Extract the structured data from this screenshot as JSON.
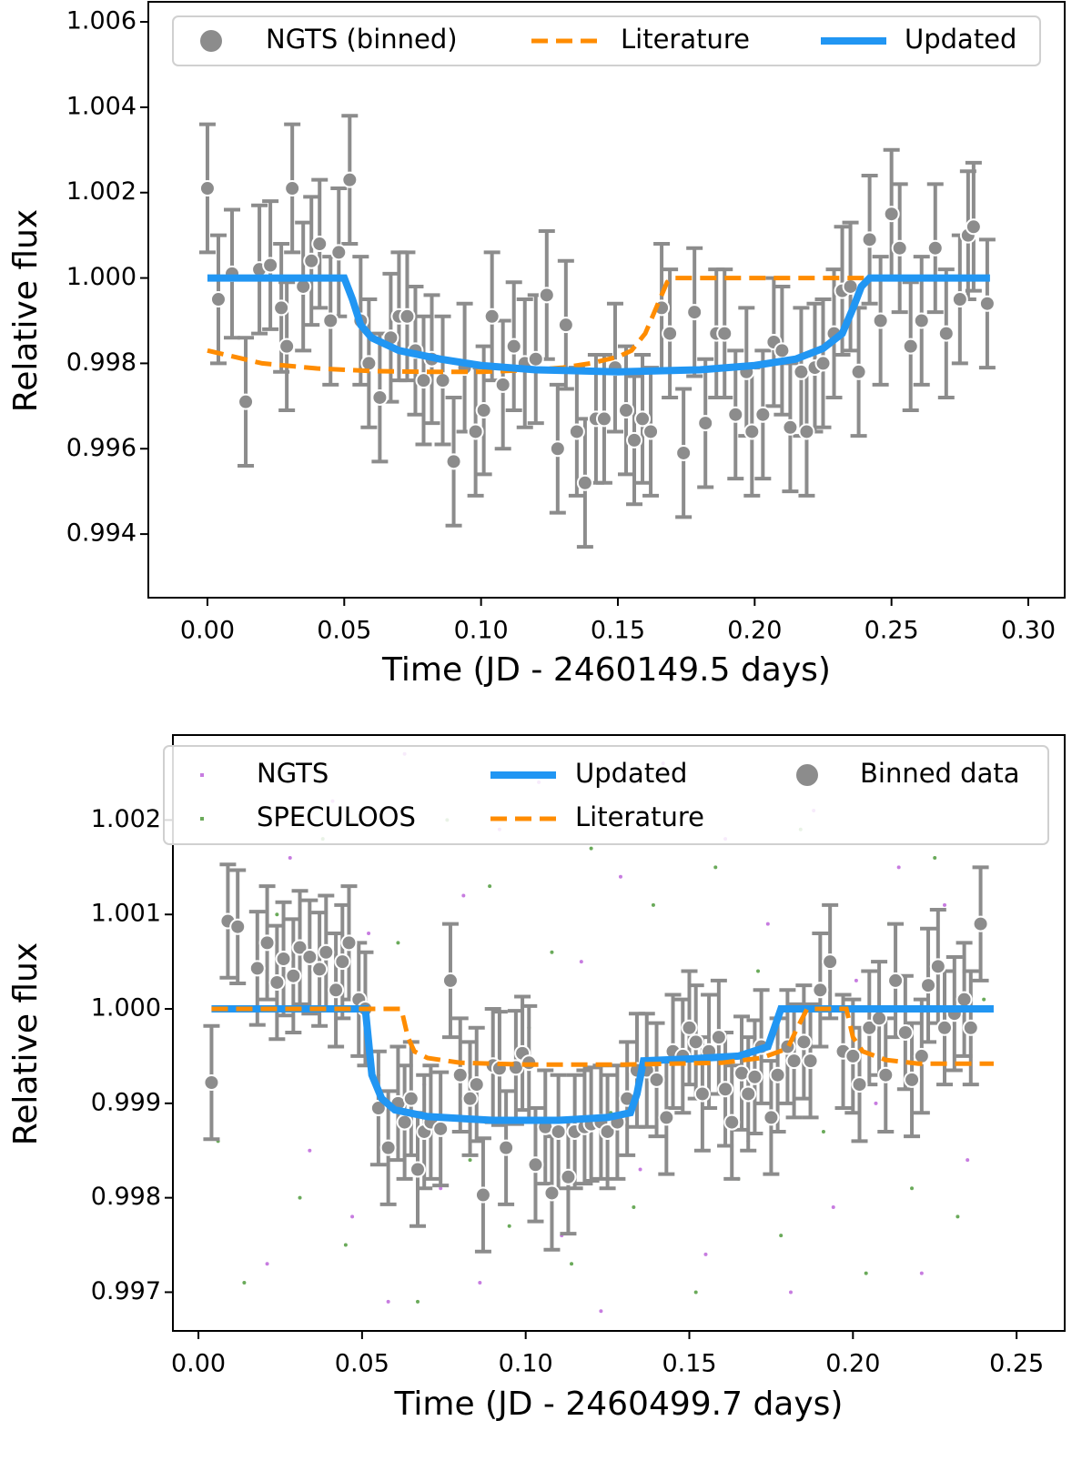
{
  "chart_data": [
    {
      "type": "errorbar_line",
      "xlabel": "Time (JD - 2460149.5 days)",
      "ylabel": "Relative flux",
      "xlim": [
        -0.0216,
        0.3133
      ],
      "xticks": [
        {
          "value": 0,
          "label": "0.00"
        },
        0.05,
        {
          "value": 0.1,
          "label": "0.10"
        },
        0.15,
        {
          "value": 0.2,
          "label": "0.20"
        },
        0.25,
        {
          "value": 0.3,
          "label": "0.30"
        }
      ],
      "ylim": [
        0.99251,
        1.00647
      ],
      "yticks": [
        0.994,
        0.996,
        0.998,
        {
          "value": 1,
          "label": "1.000"
        },
        1.002,
        1.004,
        1.006
      ],
      "legend_ncol": 3,
      "series": [
        {
          "name": "NGTS (binned)",
          "kind": "errorbar",
          "color": "#8c8c8c",
          "yerr": 0.0015,
          "x": [
            0.0,
            0.004,
            0.009,
            0.014,
            0.019,
            0.023,
            0.027,
            0.029,
            0.031,
            0.035,
            0.038,
            0.041,
            0.045,
            0.048,
            0.052,
            0.056,
            0.059,
            0.063,
            0.067,
            0.07,
            0.073,
            0.076,
            0.079,
            0.082,
            0.086,
            0.09,
            0.094,
            0.098,
            0.101,
            0.104,
            0.108,
            0.112,
            0.116,
            0.12,
            0.124,
            0.128,
            0.131,
            0.135,
            0.138,
            0.142,
            0.145,
            0.149,
            0.153,
            0.156,
            0.159,
            0.162,
            0.166,
            0.169,
            0.174,
            0.178,
            0.182,
            0.186,
            0.189,
            0.193,
            0.197,
            0.199,
            0.203,
            0.207,
            0.21,
            0.213,
            0.217,
            0.219,
            0.222,
            0.225,
            0.229,
            0.232,
            0.235,
            0.238,
            0.242,
            0.246,
            0.25,
            0.253,
            0.257,
            0.261,
            0.266,
            0.27,
            0.275,
            0.278,
            0.28,
            0.285
          ],
          "values": [
            1.0021,
            0.9995,
            1.0001,
            0.9971,
            1.0002,
            1.0003,
            0.9993,
            0.9984,
            1.0021,
            0.9998,
            1.0004,
            1.0008,
            0.999,
            1.0006,
            1.0023,
            0.999,
            0.998,
            0.9972,
            0.9986,
            0.9991,
            0.9991,
            0.9983,
            0.9976,
            0.9981,
            0.9976,
            0.9957,
            0.9979,
            0.9964,
            0.9969,
            0.9991,
            0.9975,
            0.9984,
            0.998,
            0.9981,
            0.9996,
            0.996,
            0.9989,
            0.9964,
            0.9952,
            0.9967,
            0.9967,
            0.9979,
            0.9969,
            0.9962,
            0.9967,
            0.9964,
            0.9993,
            0.9987,
            0.9959,
            0.9992,
            0.9966,
            0.9987,
            0.9987,
            0.9968,
            0.9978,
            0.9964,
            0.9968,
            0.9985,
            0.9983,
            0.9965,
            0.9978,
            0.9964,
            0.9979,
            0.998,
            0.9987,
            0.9997,
            0.9998,
            0.9978,
            1.0009,
            0.999,
            1.0015,
            1.0007,
            0.9984,
            0.999,
            1.0007,
            0.9987,
            0.9995,
            1.001,
            1.0012,
            0.9994
          ]
        },
        {
          "name": "Literature",
          "kind": "line",
          "linestyle": "dashed",
          "color": "#ff8c00",
          "x": [
            0,
            0.02,
            0.04,
            0.06,
            0.08,
            0.1,
            0.12,
            0.13,
            0.14,
            0.15,
            0.155,
            0.16,
            0.164,
            0.168,
            0.17,
            0.24
          ],
          "values": [
            0.9983,
            0.998,
            0.99788,
            0.99782,
            0.9978,
            0.9978,
            0.99785,
            0.9979,
            0.998,
            0.99815,
            0.9983,
            0.9987,
            0.9993,
            0.9999,
            1,
            1
          ]
        },
        {
          "name": "Updated",
          "kind": "line",
          "linestyle": "solid",
          "color": "#2196f3",
          "x": [
            0,
            0.05,
            0.053,
            0.056,
            0.06,
            0.07,
            0.085,
            0.1,
            0.12,
            0.15,
            0.18,
            0.2,
            0.215,
            0.225,
            0.232,
            0.236,
            0.239,
            0.242,
            0.286
          ],
          "values": [
            1,
            1,
            0.9995,
            0.9989,
            0.9986,
            0.9983,
            0.9981,
            0.99795,
            0.99785,
            0.9978,
            0.99785,
            0.99795,
            0.9981,
            0.99835,
            0.9987,
            0.9993,
            0.9998,
            1,
            1
          ]
        }
      ]
    },
    {
      "type": "errorbar_line",
      "xlabel": "Time (JD - 2460499.7 days)",
      "ylabel": "Relative flux",
      "xlim": [
        -0.0078,
        0.2647
      ],
      "xticks": [
        {
          "value": 0,
          "label": "0.00"
        },
        0.05,
        {
          "value": 0.1,
          "label": "0.10"
        },
        0.15,
        {
          "value": 0.2,
          "label": "0.20"
        },
        0.25
      ],
      "ylim": [
        0.99659,
        1.0029
      ],
      "yticks": [
        0.997,
        0.998,
        0.999,
        {
          "value": 1,
          "label": "1.000"
        },
        1.001,
        1.002
      ],
      "legend_ncol": 3,
      "series": [
        {
          "name": "NGTS",
          "kind": "scatter",
          "color": "#c77ce0",
          "x": [
            0.021,
            0.028,
            0.034,
            0.041,
            0.047,
            0.052,
            0.058,
            0.063,
            0.069,
            0.074,
            0.081,
            0.086,
            0.092,
            0.098,
            0.104,
            0.111,
            0.117,
            0.123,
            0.129,
            0.135,
            0.142,
            0.148,
            0.155,
            0.161,
            0.168,
            0.174,
            0.181,
            0.188,
            0.194,
            0.201,
            0.207,
            0.214,
            0.221,
            0.228,
            0.235
          ],
          "values": [
            0.9973,
            1.0016,
            0.9985,
            1.0022,
            0.9978,
            1.0008,
            0.9969,
            1.0027,
            0.9992,
            0.9981,
            1.0012,
            0.9971,
            1.0019,
            0.9988,
            1.0024,
            0.9976,
            1.0005,
            0.9968,
            1.0014,
            0.9983,
            1.0026,
            0.9995,
            0.9974,
            1.0018,
            0.9986,
            1.0009,
            0.997,
            1.0021,
            0.9979,
            1.0003,
            0.999,
            1.0015,
            0.9972,
            1.0011,
            0.9984
          ]
        },
        {
          "name": "SPECULOOS",
          "kind": "scatter",
          "color": "#6aaa5a",
          "x": [
            0.006,
            0.014,
            0.024,
            0.031,
            0.038,
            0.045,
            0.055,
            0.061,
            0.067,
            0.076,
            0.083,
            0.089,
            0.095,
            0.101,
            0.108,
            0.114,
            0.12,
            0.126,
            0.133,
            0.139,
            0.145,
            0.152,
            0.158,
            0.165,
            0.171,
            0.178,
            0.184,
            0.191,
            0.198,
            0.204,
            0.211,
            0.218,
            0.225,
            0.232,
            0.24
          ],
          "values": [
            0.9986,
            0.9971,
            1.001,
            0.998,
            1.0018,
            0.9975,
            0.9993,
            1.0007,
            0.9969,
            1.002,
            0.9984,
            1.0013,
            0.9977,
            0.9998,
            1.0006,
            0.9973,
            1.0017,
            0.9989,
            0.9979,
            1.0011,
            0.9991,
            0.997,
            1.0015,
            0.9982,
            1.0004,
            0.9976,
            1.0019,
            0.9987,
            0.9996,
            0.9972,
            1.0009,
            0.9981,
            1.0016,
            0.9978,
            1.0001
          ]
        },
        {
          "name": "Updated",
          "kind": "line",
          "linestyle": "solid",
          "color": "#2196f3",
          "x": [
            0.004,
            0.051,
            0.053,
            0.056,
            0.06,
            0.07,
            0.09,
            0.11,
            0.125,
            0.132,
            0.134,
            0.136,
            0.15,
            0.165,
            0.174,
            0.176,
            0.178,
            0.243
          ],
          "values": [
            1,
            1,
            0.9993,
            0.99905,
            0.99893,
            0.99886,
            0.99882,
            0.99882,
            0.99885,
            0.9989,
            0.9991,
            0.99945,
            0.99947,
            0.9995,
            0.9996,
            0.9998,
            1,
            1
          ]
        },
        {
          "name": "Literature",
          "kind": "line",
          "linestyle": "dashed",
          "color": "#ff8c00",
          "x": [
            0.004,
            0.062,
            0.064,
            0.066,
            0.07,
            0.08,
            0.1,
            0.13,
            0.16,
            0.172,
            0.18,
            0.183,
            0.186,
            0.198,
            0.2,
            0.203,
            0.21,
            0.22,
            0.243
          ],
          "values": [
            1,
            1,
            0.9997,
            0.99955,
            0.99948,
            0.99943,
            0.99941,
            0.99941,
            0.99943,
            0.99948,
            0.99958,
            0.9998,
            1,
            1,
            0.9997,
            0.99955,
            0.99946,
            0.99942,
            0.99942
          ]
        },
        {
          "name": "Binned data",
          "kind": "errorbar",
          "color": "#8c8c8c",
          "yerr": 0.0006,
          "x": [
            0.004,
            0.009,
            0.012,
            0.018,
            0.021,
            0.024,
            0.026,
            0.029,
            0.031,
            0.034,
            0.037,
            0.039,
            0.042,
            0.044,
            0.046,
            0.049,
            0.051,
            0.055,
            0.058,
            0.061,
            0.063,
            0.065,
            0.067,
            0.069,
            0.071,
            0.074,
            0.077,
            0.08,
            0.083,
            0.085,
            0.087,
            0.09,
            0.092,
            0.094,
            0.097,
            0.099,
            0.101,
            0.103,
            0.106,
            0.108,
            0.11,
            0.113,
            0.115,
            0.118,
            0.12,
            0.123,
            0.125,
            0.128,
            0.131,
            0.134,
            0.137,
            0.14,
            0.143,
            0.145,
            0.148,
            0.15,
            0.152,
            0.154,
            0.156,
            0.159,
            0.161,
            0.163,
            0.166,
            0.168,
            0.17,
            0.172,
            0.175,
            0.177,
            0.18,
            0.182,
            0.185,
            0.187,
            0.19,
            0.193,
            0.197,
            0.2,
            0.202,
            0.205,
            0.208,
            0.21,
            0.213,
            0.216,
            0.218,
            0.221,
            0.223,
            0.226,
            0.228,
            0.231,
            0.234,
            0.236,
            0.239
          ],
          "values": [
            0.99922,
            1.00093,
            1.00087,
            1.00043,
            1.0007,
            1.00028,
            1.00053,
            1.00035,
            1.00065,
            1.00055,
            1.00042,
            1.0006,
            1.0002,
            1.0005,
            1.0007,
            1.0001,
            1.0,
            0.99895,
            0.99853,
            0.999,
            0.9988,
            0.99905,
            0.9983,
            0.9987,
            0.9988,
            0.99873,
            1.0003,
            0.9993,
            0.99905,
            0.9992,
            0.99803,
            0.9994,
            0.99937,
            0.99853,
            0.99938,
            0.99953,
            0.99943,
            0.99835,
            0.99875,
            0.99805,
            0.9987,
            0.99822,
            0.9987,
            0.99875,
            0.99878,
            0.9988,
            0.9987,
            0.9988,
            0.99905,
            0.99935,
            0.99935,
            0.99925,
            0.99885,
            0.99955,
            0.9995,
            0.9998,
            0.99965,
            0.9991,
            0.99955,
            0.9997,
            0.99915,
            0.9988,
            0.99932,
            0.9991,
            0.99928,
            0.9996,
            0.99885,
            0.9993,
            0.9996,
            0.99945,
            0.99965,
            0.99945,
            1.0002,
            1.0005,
            0.99955,
            0.9995,
            0.9992,
            0.9998,
            0.9999,
            0.9993,
            1.0003,
            0.99975,
            0.99925,
            0.9995,
            1.00025,
            1.00045,
            0.9998,
            0.99995,
            1.0001,
            0.9998,
            1.0009
          ]
        }
      ]
    }
  ]
}
